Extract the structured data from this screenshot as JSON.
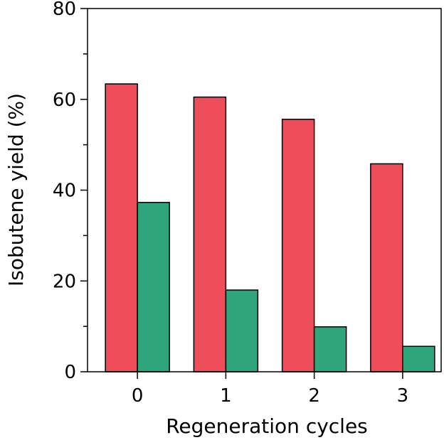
{
  "chart_data": {
    "type": "bar",
    "title": "",
    "xlabel": "Regeneration cycles",
    "ylabel": "Isobutene yield (%)",
    "categories": [
      "0",
      "1",
      "2",
      "3"
    ],
    "series": [
      {
        "values": [
          63.4,
          60.5,
          55.6,
          45.8
        ],
        "color": "#ee4d5a"
      },
      {
        "values": [
          37.3,
          18.0,
          9.9,
          5.6
        ],
        "color": "#2ea57a"
      }
    ],
    "ylim": [
      0,
      80
    ],
    "yticks": [
      "0",
      "20",
      "40",
      "60",
      "80"
    ],
    "grid": false,
    "legend": "none"
  }
}
